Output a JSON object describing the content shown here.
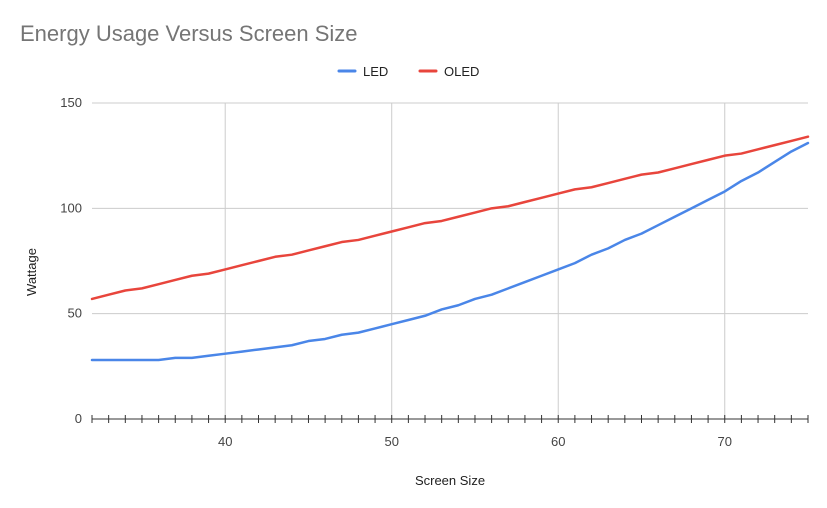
{
  "chart_data": {
    "type": "line",
    "title": "Energy Usage Versus Screen Size",
    "xlabel": "Screen Size",
    "ylabel": "Wattage",
    "xlim": [
      32,
      75
    ],
    "ylim": [
      0,
      150
    ],
    "x_ticks": [
      40,
      50,
      60,
      70
    ],
    "y_ticks": [
      0,
      50,
      100,
      150
    ],
    "grid": true,
    "legend_position": "top-center",
    "x": [
      32,
      33,
      34,
      35,
      36,
      37,
      38,
      39,
      40,
      41,
      42,
      43,
      44,
      45,
      46,
      47,
      48,
      49,
      50,
      51,
      52,
      53,
      54,
      55,
      56,
      57,
      58,
      59,
      60,
      61,
      62,
      63,
      64,
      65,
      66,
      67,
      68,
      69,
      70,
      71,
      72,
      73,
      74,
      75
    ],
    "series": [
      {
        "name": "LED",
        "color": "#4a86e8",
        "values": [
          28,
          28,
          28,
          28,
          28,
          29,
          29,
          30,
          31,
          32,
          33,
          34,
          35,
          37,
          38,
          40,
          41,
          43,
          45,
          47,
          49,
          52,
          54,
          57,
          59,
          62,
          65,
          68,
          71,
          74,
          78,
          81,
          85,
          88,
          92,
          96,
          100,
          104,
          108,
          113,
          117,
          122,
          127,
          131
        ]
      },
      {
        "name": "OLED",
        "color": "#e8453c",
        "values": [
          57,
          59,
          61,
          62,
          64,
          66,
          68,
          69,
          71,
          73,
          75,
          77,
          78,
          80,
          82,
          84,
          85,
          87,
          89,
          91,
          93,
          94,
          96,
          98,
          100,
          101,
          103,
          105,
          107,
          109,
          110,
          112,
          114,
          116,
          117,
          119,
          121,
          123,
          125,
          126,
          128,
          130,
          132,
          134
        ]
      }
    ]
  }
}
